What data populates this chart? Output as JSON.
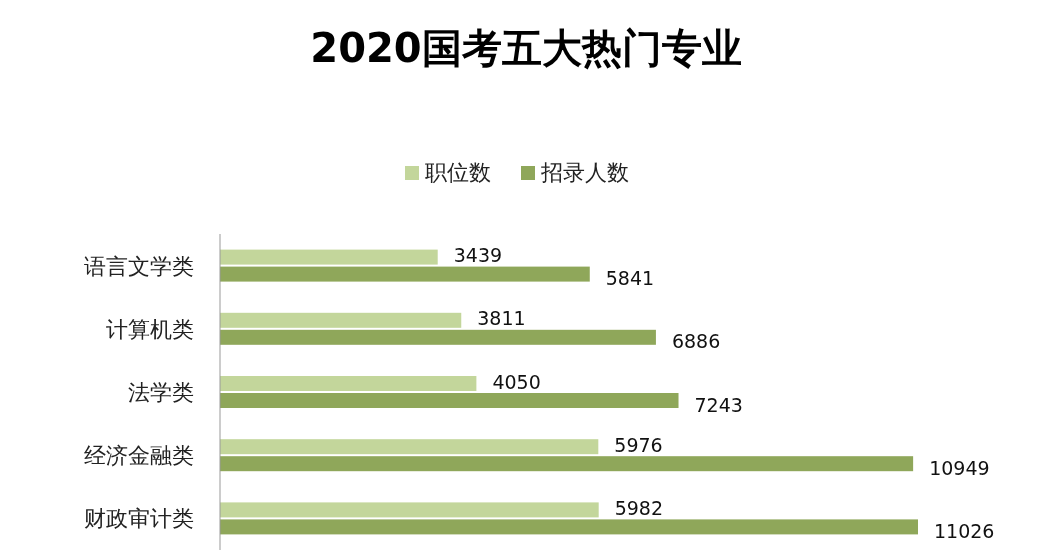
{
  "chart_data": {
    "type": "bar",
    "orientation": "horizontal",
    "title": "2020国考五大热门专业",
    "categories": [
      "语言文学类",
      "计算机类",
      "法学类",
      "经济金融类",
      "财政审计类"
    ],
    "series": [
      {
        "name": "职位数",
        "color": "#c3d69b",
        "values": [
          3439,
          3811,
          4050,
          5976,
          5982
        ]
      },
      {
        "name": "招录人数",
        "color": "#8fa75a",
        "values": [
          5841,
          6886,
          7243,
          10949,
          11026
        ]
      }
    ],
    "data_labels": true,
    "legend": "top"
  }
}
